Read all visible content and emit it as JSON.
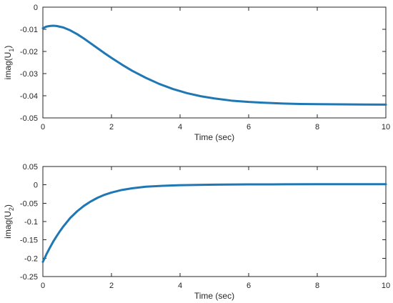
{
  "chart_data": [
    {
      "type": "line",
      "title": "",
      "xlabel": "Time (sec)",
      "ylabel": {
        "prefix": "imag(U",
        "subscript": "1",
        "suffix": ")"
      },
      "xlim": [
        0,
        10
      ],
      "ylim": [
        -0.05,
        0
      ],
      "xticks": [
        0,
        2,
        4,
        6,
        8,
        10
      ],
      "yticks": [
        -0.05,
        -0.04,
        -0.03,
        -0.02,
        -0.01,
        0
      ],
      "xtick_labels": [
        "0",
        "2",
        "4",
        "6",
        "8",
        "10"
      ],
      "ytick_labels": [
        "-0.05",
        "-0.04",
        "-0.03",
        "-0.02",
        "-0.01",
        "0"
      ],
      "grid": false,
      "series": [
        {
          "color": "#1f77b4",
          "x": [
            0,
            0.1,
            0.2,
            0.3,
            0.4,
            0.6,
            0.8,
            1.0,
            1.2,
            1.5,
            1.8,
            2.0,
            2.3,
            2.6,
            3.0,
            3.4,
            3.8,
            4.2,
            4.6,
            5.0,
            5.5,
            6.0,
            6.5,
            7.0,
            7.5,
            8.0,
            9.0,
            10.0
          ],
          "y": [
            -0.0095,
            -0.0088,
            -0.0085,
            -0.0084,
            -0.0085,
            -0.0092,
            -0.0105,
            -0.0122,
            -0.0142,
            -0.0175,
            -0.0208,
            -0.0229,
            -0.0259,
            -0.0287,
            -0.0319,
            -0.0347,
            -0.037,
            -0.0388,
            -0.0402,
            -0.0412,
            -0.0422,
            -0.0428,
            -0.0432,
            -0.0435,
            -0.0437,
            -0.0438,
            -0.0439,
            -0.044
          ]
        }
      ]
    },
    {
      "type": "line",
      "title": "",
      "xlabel": "Time (sec)",
      "ylabel": {
        "prefix": "imag(U",
        "subscript": "2",
        "suffix": ")"
      },
      "xlim": [
        0,
        10
      ],
      "ylim": [
        -0.25,
        0.05
      ],
      "xticks": [
        0,
        2,
        4,
        6,
        8,
        10
      ],
      "yticks": [
        -0.25,
        -0.2,
        -0.15,
        -0.1,
        -0.05,
        0,
        0.05
      ],
      "xtick_labels": [
        "0",
        "2",
        "4",
        "6",
        "8",
        "10"
      ],
      "ytick_labels": [
        "-0.25",
        "-0.2",
        "-0.15",
        "-0.1",
        "-0.05",
        "0",
        "0.05"
      ],
      "grid": false,
      "series": [
        {
          "color": "#1f77b4",
          "x": [
            0,
            0.1,
            0.2,
            0.3,
            0.4,
            0.5,
            0.6,
            0.8,
            1.0,
            1.2,
            1.4,
            1.6,
            1.8,
            2.0,
            2.3,
            2.6,
            3.0,
            3.5,
            4.0,
            4.5,
            5.0,
            6.0,
            7.0,
            8.0,
            9.0,
            10.0
          ],
          "y": [
            -0.21,
            -0.19,
            -0.172,
            -0.155,
            -0.14,
            -0.126,
            -0.113,
            -0.09,
            -0.072,
            -0.057,
            -0.045,
            -0.035,
            -0.027,
            -0.021,
            -0.014,
            -0.0095,
            -0.005,
            -0.0025,
            -0.001,
            -0.0002,
            0.0005,
            0.0012,
            0.0015,
            0.0017,
            0.0018,
            0.0018
          ]
        }
      ]
    }
  ]
}
